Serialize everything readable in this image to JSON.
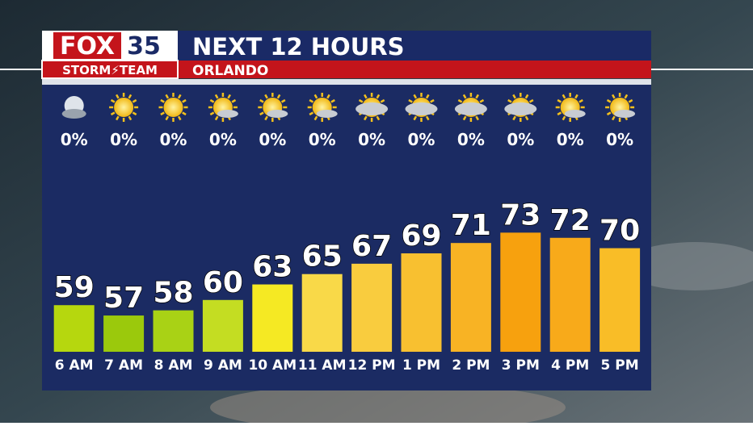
{
  "chart_data": {
    "type": "bar",
    "brand": "FOX",
    "brand_number": "35",
    "team": "STORM⚡TEAM",
    "title": "NEXT 12 HOURS",
    "subtitle": "ORLANDO",
    "categories": [
      "6 AM",
      "7 AM",
      "8 AM",
      "9 AM",
      "10 AM",
      "11 AM",
      "12 PM",
      "1 PM",
      "2 PM",
      "3 PM",
      "4 PM",
      "5 PM"
    ],
    "values": [
      59,
      57,
      58,
      60,
      63,
      65,
      67,
      69,
      71,
      73,
      72,
      70
    ],
    "colors": [
      "#b6d70e",
      "#9bc90c",
      "#a9d215",
      "#c4dd22",
      "#f5e923",
      "#f9d948",
      "#f9cc3e",
      "#f8c030",
      "#f8b324",
      "#f7a10e",
      "#f8aa1a",
      "#f9bd27"
    ],
    "precipitation": {
      "values": [
        0,
        0,
        0,
        0,
        0,
        0,
        0,
        0,
        0,
        0,
        0,
        0
      ],
      "value_labels": [
        "0%",
        "0%",
        "0%",
        "0%",
        "0%",
        "0%",
        "0%",
        "0%",
        "0%",
        "0%",
        "0%",
        "0%"
      ]
    },
    "ylim": [
      50,
      100
    ]
  }
}
